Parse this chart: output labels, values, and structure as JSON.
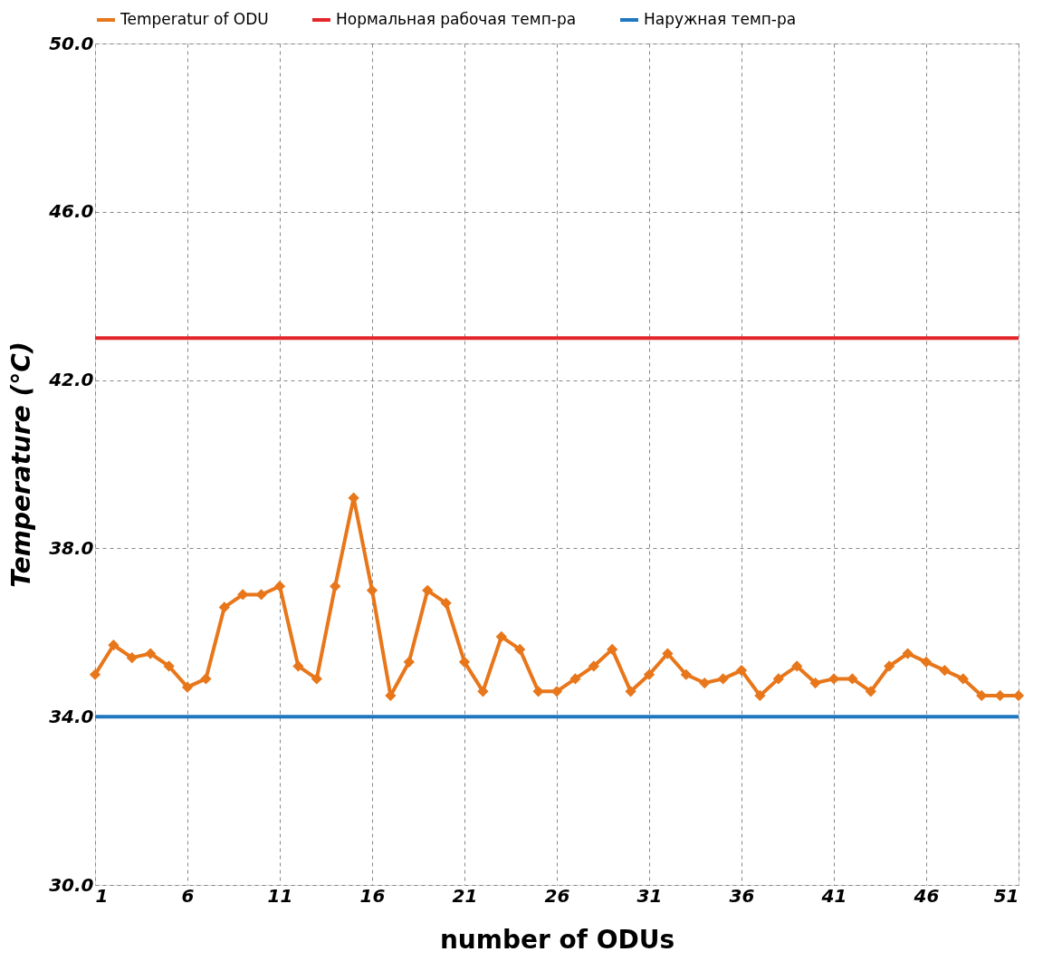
{
  "chart_data": {
    "type": "line",
    "xlabel": "number of ODUs",
    "ylabel": "Temperature (°C)",
    "x": [
      1,
      2,
      3,
      4,
      5,
      6,
      7,
      8,
      9,
      10,
      11,
      12,
      13,
      14,
      15,
      16,
      17,
      18,
      19,
      20,
      21,
      22,
      23,
      24,
      25,
      26,
      27,
      28,
      29,
      30,
      31,
      32,
      33,
      34,
      35,
      36,
      37,
      38,
      39,
      40,
      41,
      42,
      43,
      44,
      45,
      46,
      47,
      48,
      49,
      50,
      51
    ],
    "series": [
      {
        "name": "Temperatur of ODU",
        "color": "#e8761a",
        "values": [
          35.0,
          35.7,
          35.4,
          35.5,
          35.2,
          34.7,
          34.9,
          36.6,
          36.9,
          36.9,
          37.1,
          35.2,
          34.9,
          37.1,
          39.2,
          37.0,
          34.5,
          35.3,
          37.0,
          36.7,
          35.3,
          34.6,
          35.9,
          35.6,
          34.6,
          34.6,
          34.9,
          35.2,
          35.6,
          34.6,
          35.0,
          35.5,
          35.0,
          34.8,
          34.9,
          35.1,
          34.5,
          34.9,
          35.2,
          34.8,
          34.9,
          34.9,
          34.6,
          35.2,
          35.5,
          35.3,
          35.1,
          34.9,
          34.5,
          34.5,
          34.5
        ]
      }
    ],
    "ref_lines": [
      {
        "axis": "y",
        "value": 43,
        "label": "Нормальная рабочая темп-ра",
        "color": "#e3262b"
      },
      {
        "axis": "y",
        "value": 34,
        "label": "Наружная темп-ра",
        "color": "#1f77c0"
      }
    ],
    "xlim": [
      1,
      51
    ],
    "xticks": [
      1,
      6,
      11,
      16,
      21,
      26,
      31,
      36,
      41,
      46,
      51
    ],
    "ylim": [
      30,
      50
    ],
    "yticks": [
      {
        "value": 30,
        "label": "30.0"
      },
      {
        "value": 34,
        "label": "34.0"
      },
      {
        "value": 38,
        "label": "38.0"
      },
      {
        "value": 42,
        "label": "42.0"
      },
      {
        "value": 46,
        "label": "46.0"
      },
      {
        "value": 50,
        "label": "50.0"
      }
    ],
    "grid": true,
    "legend": "top",
    "marker": "diamond",
    "line_style": "solid"
  }
}
